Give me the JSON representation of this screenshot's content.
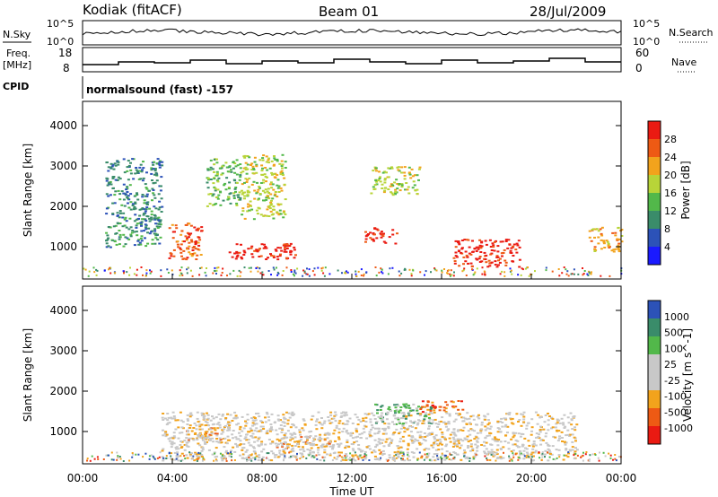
{
  "header": {
    "station": "Kodiak (fitACF)",
    "beam": "Beam 01",
    "date": "28/Jul/2009"
  },
  "param_panels": {
    "left_labels": {
      "nsky": "N.Sky",
      "freq_line1": "Freq.",
      "freq_line2": "[MHz]",
      "cpid": "CPID"
    },
    "right_labels": {
      "nsearch": "N.Search",
      "nave": "Nave"
    },
    "noise_ticks_left": [
      "10^5",
      "10^0"
    ],
    "noise_ticks_right": [
      "10^5",
      "10^0"
    ],
    "freq_ticks": [
      "18",
      "8"
    ],
    "nave_ticks": [
      "60",
      "0"
    ],
    "cpid_text": "normalsound (fast) -157"
  },
  "colors": {
    "power_scale": [
      "#1a1aff",
      "#2c52b8",
      "#3a8c6a",
      "#52b84a",
      "#b8d438",
      "#f2a31c",
      "#ee5a14",
      "#ea1a12"
    ],
    "velocity_scale": [
      "#ea1a12",
      "#ee5a14",
      "#f2a31c",
      "#c8c8c8",
      "#c8c8c8",
      "#52b84a",
      "#3a8c6a",
      "#2c52b8"
    ]
  },
  "chart_data": [
    {
      "type": "heatmap",
      "title": "Power",
      "xlabel": "",
      "ylabel": "Slant Range [km]",
      "yticks": [
        "1000",
        "2000",
        "3000",
        "4000"
      ],
      "ylim": [
        200,
        4600
      ],
      "xlim": [
        "00:00",
        "24:00"
      ],
      "colorbar": {
        "label": "Power [dB]",
        "ticks": [
          "4",
          "8",
          "12",
          "16",
          "20",
          "24",
          "28"
        ],
        "range": [
          0,
          32
        ]
      },
      "regions": [
        {
          "t0": 1.0,
          "t1": 3.5,
          "r0": 1000,
          "r1": 3200,
          "level": 2
        },
        {
          "t0": 3.8,
          "t1": 5.3,
          "r0": 700,
          "r1": 1600,
          "level": 6
        },
        {
          "t0": 5.5,
          "t1": 7.0,
          "r0": 2000,
          "r1": 3200,
          "level": 3
        },
        {
          "t0": 6.5,
          "t1": 9.5,
          "r0": 700,
          "r1": 1100,
          "level": 7
        },
        {
          "t0": 7.0,
          "t1": 9.0,
          "r0": 1700,
          "r1": 3300,
          "level": 4
        },
        {
          "t0": 12.5,
          "t1": 14.0,
          "r0": 1100,
          "r1": 1500,
          "level": 7
        },
        {
          "t0": 12.8,
          "t1": 15.0,
          "r0": 2300,
          "r1": 3000,
          "level": 4
        },
        {
          "t0": 16.5,
          "t1": 19.5,
          "r0": 500,
          "r1": 1200,
          "level": 7
        },
        {
          "t0": 22.5,
          "t1": 24.0,
          "r0": 900,
          "r1": 1500,
          "level": 5
        }
      ]
    },
    {
      "type": "heatmap",
      "title": "Velocity",
      "xlabel": "Time UT",
      "ylabel": "Slant Range [km]",
      "yticks": [
        "1000",
        "2000",
        "3000",
        "4000"
      ],
      "ylim": [
        200,
        4600
      ],
      "xticks": [
        "00:00",
        "04:00",
        "08:00",
        "12:00",
        "16:00",
        "20:00",
        "00:00"
      ],
      "xlim": [
        "00:00",
        "24:00"
      ],
      "colorbar": {
        "label": "Velocity [m s^-1]",
        "ticks": [
          "1000",
          "500",
          "100",
          "25",
          "-25",
          "-100",
          "-500",
          "-1000"
        ]
      },
      "regions": [
        {
          "t0": 4.5,
          "t1": 6.5,
          "r0": 800,
          "r1": 1200,
          "level": 2
        },
        {
          "t0": 8.5,
          "t1": 11.0,
          "r0": 600,
          "r1": 900,
          "level": 2
        },
        {
          "t0": 13.0,
          "t1": 15.5,
          "r0": 1200,
          "r1": 1700,
          "level": 5
        },
        {
          "t0": 15.0,
          "t1": 17.0,
          "r0": 1500,
          "r1": 1800,
          "level": 1
        },
        {
          "t0": 3.5,
          "t1": 22.0,
          "r0": 300,
          "r1": 1500,
          "level": 3
        }
      ]
    }
  ]
}
